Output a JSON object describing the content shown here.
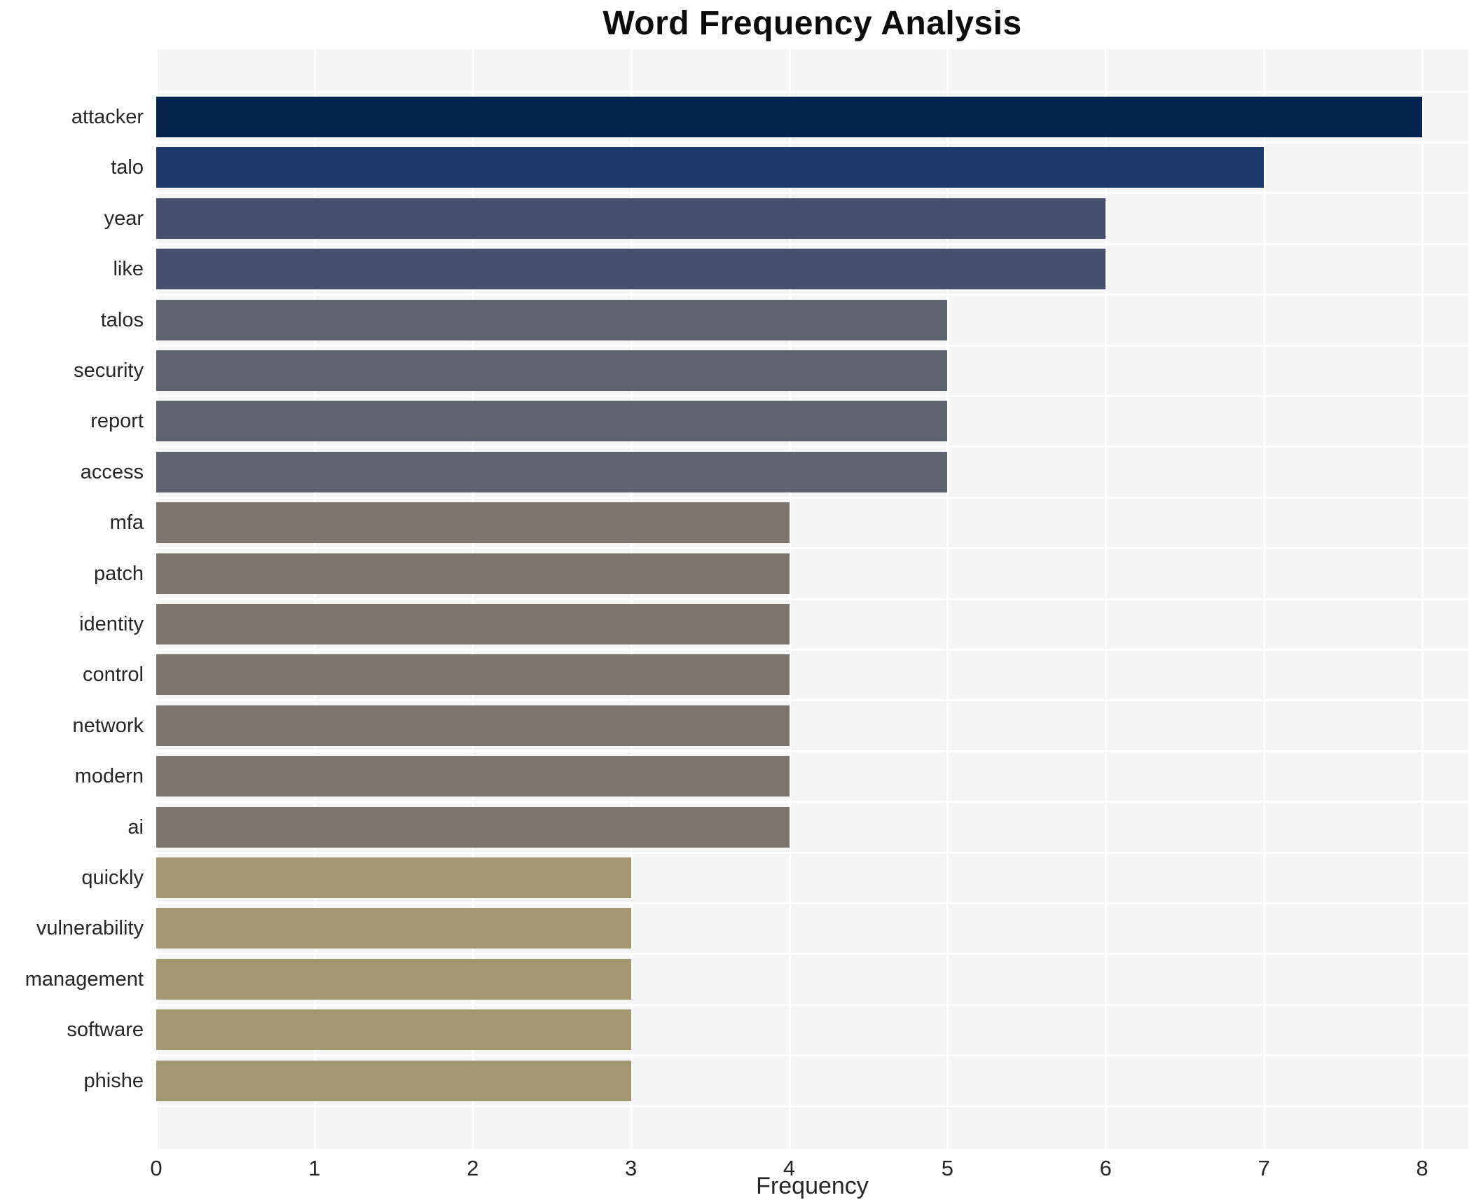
{
  "chart_data": {
    "type": "bar",
    "orientation": "horizontal",
    "title": "Word Frequency Analysis",
    "xlabel": "Frequency",
    "ylabel": "",
    "categories": [
      "attacker",
      "talo",
      "year",
      "like",
      "talos",
      "security",
      "report",
      "access",
      "mfa",
      "patch",
      "identity",
      "control",
      "network",
      "modern",
      "ai",
      "quickly",
      "vulnerability",
      "management",
      "software",
      "phishe"
    ],
    "values": [
      8,
      7,
      6,
      6,
      5,
      5,
      5,
      5,
      4,
      4,
      4,
      4,
      4,
      4,
      4,
      3,
      3,
      3,
      3,
      3
    ],
    "bar_colors": [
      "#02234d",
      "#1e396b",
      "#46506e",
      "#46506e",
      "#5e6370",
      "#5e6370",
      "#5e6370",
      "#5e6370",
      "#7b776e",
      "#7b776e",
      "#7b776e",
      "#7b776e",
      "#7b776e",
      "#7b776e",
      "#7b776e",
      "#a19872",
      "#a19872",
      "#a19872",
      "#a19872",
      "#a19872"
    ],
    "x_ticks": [
      "0",
      "1",
      "2",
      "3",
      "4",
      "5",
      "6",
      "7",
      "8"
    ],
    "xlim": [
      0,
      8.29
    ],
    "ylim_note": "20 category rows with padding band above first and below last bar",
    "grid": "on",
    "grid_color": "#ffffff",
    "plot_background": "#f5f5f6",
    "page_background": "#ffffff",
    "legend": null,
    "text_color": "#262626",
    "title_color": "#0c0c0c"
  }
}
